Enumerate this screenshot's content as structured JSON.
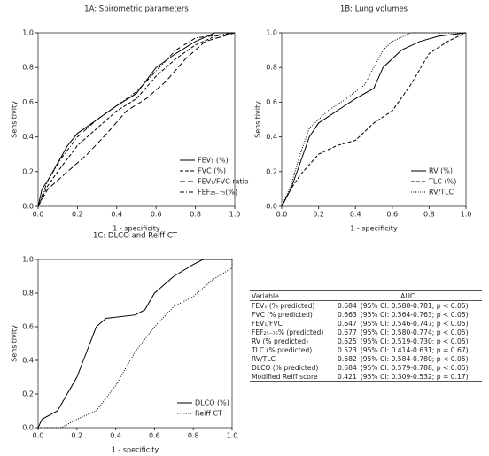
{
  "chart_data": [
    {
      "type": "line",
      "title": "1A: Spirometric parameters",
      "x_label": "1 - specificity",
      "y_label": "Sensitivity",
      "xlim": [
        0,
        1
      ],
      "ylim": [
        0,
        1
      ],
      "xticks": [
        {
          "value": 0,
          "label": "0.0"
        },
        {
          "value": 0.2,
          "label": "0.2"
        },
        {
          "value": 0.4,
          "label": "0.4"
        },
        {
          "value": 0.6,
          "label": "0.6"
        },
        {
          "value": 0.8,
          "label": "0.8"
        },
        {
          "value": 1,
          "label": "1.0"
        }
      ],
      "yticks": [
        {
          "value": 0,
          "label": "0.0"
        },
        {
          "value": 0.2,
          "label": "0.2"
        },
        {
          "value": 0.4,
          "label": "0.4"
        },
        {
          "value": 0.6,
          "label": "0.6"
        },
        {
          "value": 0.8,
          "label": "0.8"
        },
        {
          "value": 1,
          "label": "1.0"
        }
      ],
      "legend": "lower right",
      "series": [
        {
          "name": "FEV₁ (%)",
          "color": "#000000",
          "style": "solid",
          "x": [
            0,
            0.02,
            0.05,
            0.1,
            0.15,
            0.2,
            0.3,
            0.4,
            0.5,
            0.6,
            0.7,
            0.8,
            0.9,
            1
          ],
          "values": [
            0,
            0.1,
            0.15,
            0.25,
            0.35,
            0.42,
            0.5,
            0.58,
            0.65,
            0.8,
            0.88,
            0.95,
            1,
            1
          ]
        },
        {
          "name": "FVC (%)",
          "color": "#000000",
          "style": "dashed",
          "x": [
            0,
            0.05,
            0.1,
            0.2,
            0.3,
            0.4,
            0.5,
            0.6,
            0.7,
            0.8,
            0.9,
            1
          ],
          "values": [
            0,
            0.12,
            0.2,
            0.35,
            0.45,
            0.55,
            0.62,
            0.75,
            0.85,
            0.93,
            0.98,
            1
          ]
        },
        {
          "name": "FEV₁/FVC ratio",
          "color": "#000000",
          "style": "longdash",
          "x": [
            0,
            0.05,
            0.15,
            0.25,
            0.35,
            0.45,
            0.55,
            0.65,
            0.75,
            0.85,
            1
          ],
          "values": [
            0,
            0.1,
            0.2,
            0.3,
            0.42,
            0.55,
            0.62,
            0.72,
            0.85,
            0.95,
            1
          ]
        },
        {
          "name": "FEF₂₅₋₇₅(%)",
          "color": "#000000",
          "style": "dashdot",
          "x": [
            0,
            0.05,
            0.12,
            0.2,
            0.3,
            0.4,
            0.5,
            0.6,
            0.7,
            0.8,
            1
          ],
          "values": [
            0,
            0.15,
            0.28,
            0.4,
            0.5,
            0.58,
            0.66,
            0.78,
            0.9,
            0.97,
            1
          ]
        }
      ]
    },
    {
      "type": "line",
      "title": "1B: Lung volumes",
      "x_label": "1 - specificity",
      "y_label": "Sensitivity",
      "xlim": [
        0,
        1
      ],
      "ylim": [
        0,
        1
      ],
      "xticks": [
        {
          "value": 0,
          "label": "0.0"
        },
        {
          "value": 0.2,
          "label": "0.2"
        },
        {
          "value": 0.4,
          "label": "0.4"
        },
        {
          "value": 0.6,
          "label": "0.6"
        },
        {
          "value": 0.8,
          "label": "0.8"
        },
        {
          "value": 1,
          "label": "1.0"
        }
      ],
      "yticks": [
        {
          "value": 0,
          "label": "0.0"
        },
        {
          "value": 0.2,
          "label": "0.2"
        },
        {
          "value": 0.4,
          "label": "0.4"
        },
        {
          "value": 0.6,
          "label": "0.6"
        },
        {
          "value": 0.8,
          "label": "0.8"
        },
        {
          "value": 1,
          "label": "1.0"
        }
      ],
      "legend": "lower right",
      "series": [
        {
          "name": "RV (%)",
          "color": "#000000",
          "style": "solid",
          "x": [
            0,
            0.05,
            0.1,
            0.15,
            0.2,
            0.3,
            0.4,
            0.5,
            0.55,
            0.65,
            0.75,
            0.85,
            1
          ],
          "values": [
            0,
            0.1,
            0.25,
            0.4,
            0.48,
            0.55,
            0.62,
            0.68,
            0.8,
            0.9,
            0.95,
            0.98,
            1
          ]
        },
        {
          "name": "TLC (%)",
          "color": "#000000",
          "style": "dashed",
          "x": [
            0,
            0.05,
            0.1,
            0.2,
            0.3,
            0.4,
            0.5,
            0.6,
            0.7,
            0.8,
            0.9,
            1
          ],
          "values": [
            0,
            0.1,
            0.18,
            0.3,
            0.35,
            0.38,
            0.48,
            0.55,
            0.7,
            0.88,
            0.95,
            1
          ]
        },
        {
          "name": "RV/TLC",
          "color": "#000000",
          "style": "dotted",
          "x": [
            0,
            0.05,
            0.1,
            0.15,
            0.25,
            0.35,
            0.45,
            0.5,
            0.55,
            0.6,
            0.7,
            1
          ],
          "values": [
            0,
            0.12,
            0.3,
            0.45,
            0.55,
            0.62,
            0.7,
            0.8,
            0.9,
            0.95,
            1,
            1
          ]
        }
      ]
    },
    {
      "type": "line",
      "title": "1C: DLCO and Reiff CT",
      "x_label": "1 - specificity",
      "y_label": "Sensitivity",
      "xlim": [
        0,
        1
      ],
      "ylim": [
        0,
        1
      ],
      "xticks": [
        {
          "value": 0,
          "label": "0.0"
        },
        {
          "value": 0.2,
          "label": "0.2"
        },
        {
          "value": 0.4,
          "label": "0.4"
        },
        {
          "value": 0.6,
          "label": "0.6"
        },
        {
          "value": 0.8,
          "label": "0.8"
        },
        {
          "value": 1,
          "label": "1.0"
        }
      ],
      "yticks": [
        {
          "value": 0,
          "label": "0.0"
        },
        {
          "value": 0.2,
          "label": "0.2"
        },
        {
          "value": 0.4,
          "label": "0.4"
        },
        {
          "value": 0.6,
          "label": "0.6"
        },
        {
          "value": 0.8,
          "label": "0.8"
        },
        {
          "value": 1,
          "label": "1.0"
        }
      ],
      "legend": "lower right",
      "series": [
        {
          "name": "DLCO (%)",
          "color": "#000000",
          "style": "solid",
          "x": [
            0,
            0.02,
            0.1,
            0.15,
            0.2,
            0.25,
            0.3,
            0.35,
            0.5,
            0.55,
            0.6,
            0.7,
            0.8,
            0.85,
            1
          ],
          "values": [
            0,
            0.05,
            0.1,
            0.2,
            0.3,
            0.45,
            0.6,
            0.65,
            0.67,
            0.7,
            0.8,
            0.9,
            0.97,
            1,
            1
          ]
        },
        {
          "name": "Reiff CT",
          "color": "#000000",
          "style": "dotted",
          "x": [
            0,
            0.12,
            0.2,
            0.3,
            0.4,
            0.5,
            0.6,
            0.7,
            0.8,
            0.9,
            1,
            1
          ],
          "values": [
            0,
            0,
            0.05,
            0.1,
            0.25,
            0.45,
            0.6,
            0.72,
            0.78,
            0.88,
            0.95,
            1
          ]
        }
      ]
    }
  ],
  "table": {
    "header": [
      "Variable",
      "AUC"
    ],
    "rows": [
      [
        "FEV₁ (% predicted)",
        0.684,
        "(95% CI: 0.588-0.781; p < 0.05)"
      ],
      [
        "FVC (% predicted)",
        0.663,
        "(95% CI: 0.564-0.763; p < 0.05)"
      ],
      [
        "FEV₁/FVC",
        0.647,
        "(95% CI: 0.546-0.747; p < 0.05)"
      ],
      [
        "FEF₂₅₋₇₅% (predicted)",
        0.677,
        "(95% CI: 0.580-0.774; p < 0.05)"
      ],
      [
        "RV (% predicted)",
        0.625,
        "(95% CI: 0.519-0.730; p < 0.05)"
      ],
      [
        "TLC (% predicted)",
        0.523,
        "(95% CI: 0.414-0.631; p = 0.67)"
      ],
      [
        "RV/TLC",
        0.682,
        "(95% CI: 0.584-0.780; p < 0.05)"
      ],
      [
        "DLCO (% predicted)",
        0.684,
        "(95% CI: 0.579-0.788; p < 0.05)"
      ],
      [
        "Modified Reiff score",
        0.421,
        "(95% CI: 0.309-0.532; p = 0.17)"
      ]
    ]
  }
}
